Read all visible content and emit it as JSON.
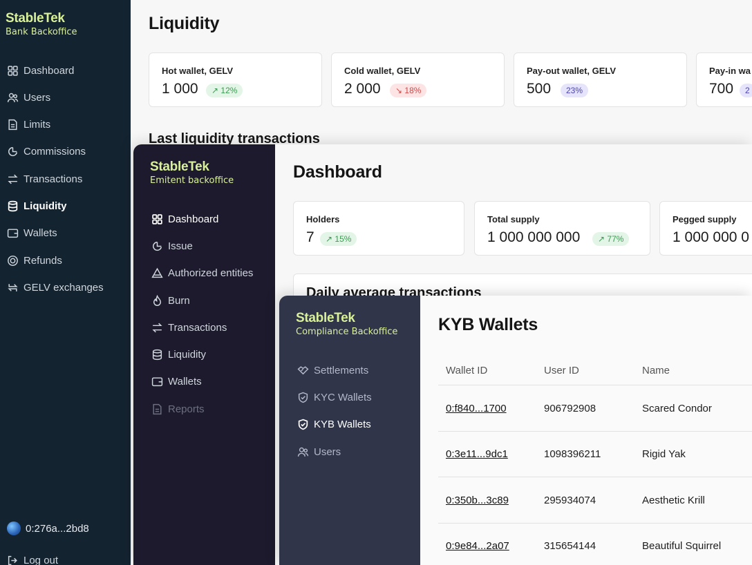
{
  "bank": {
    "brand": {
      "name": "StableTek",
      "subtitle": "Bank Backoffice"
    },
    "nav": [
      {
        "label": "Dashboard",
        "icon": "grid-icon"
      },
      {
        "label": "Users",
        "icon": "users-icon"
      },
      {
        "label": "Limits",
        "icon": "document-icon"
      },
      {
        "label": "Commissions",
        "icon": "commission-icon"
      },
      {
        "label": "Transactions",
        "icon": "arrows-icon"
      },
      {
        "label": "Liquidity",
        "icon": "database-icon",
        "active": true
      },
      {
        "label": "Wallets",
        "icon": "wallet-icon"
      },
      {
        "label": "Refunds",
        "icon": "refund-icon"
      },
      {
        "label": "GELV exchanges",
        "icon": "exchange-icon"
      }
    ],
    "account": "0:276a...2bd8",
    "logout": "Log out",
    "title": "Liquidity",
    "cards": [
      {
        "label": "Hot wallet, GELV",
        "value": "1 000",
        "badge": "↗ 12%",
        "trend": "up"
      },
      {
        "label": "Cold wallet, GELV",
        "value": "2 000",
        "badge": "↘ 18%",
        "trend": "down"
      },
      {
        "label": "Pay-out wallet, GELV",
        "value": "500",
        "badge": "23%",
        "trend": "neutral"
      },
      {
        "label": "Pay-in wa",
        "value": "700",
        "badge": "2",
        "trend": "neutral"
      }
    ],
    "section": "Last liquidity transactions"
  },
  "emitent": {
    "brand": {
      "name": "StableTek",
      "subtitle": "Emitent backoffice"
    },
    "nav": [
      {
        "label": "Dashboard",
        "icon": "grid-icon",
        "active": true
      },
      {
        "label": "Issue",
        "icon": "issue-icon"
      },
      {
        "label": "Authorized entities",
        "icon": "triangle-icon"
      },
      {
        "label": "Burn",
        "icon": "flame-icon"
      },
      {
        "label": "Transactions",
        "icon": "arrows-icon"
      },
      {
        "label": "Liquidity",
        "icon": "database-icon"
      },
      {
        "label": "Wallets",
        "icon": "wallet-icon"
      },
      {
        "label": "Reports",
        "icon": "document-icon",
        "disabled": true
      }
    ],
    "title": "Dashboard",
    "cards": [
      {
        "label": "Holders",
        "value": "7",
        "badge": "↗ 15%",
        "trend": "up"
      },
      {
        "label": "Total supply",
        "value": "1 000 000 000",
        "badge": "↗ 77%",
        "trend": "up"
      },
      {
        "label": "Pegged supply",
        "value": "1 000 000 0",
        "badge": "",
        "trend": "up"
      }
    ],
    "section": "Daily average transactions"
  },
  "compliance": {
    "brand": {
      "name": "StableTek",
      "subtitle": "Compliance Backoffice"
    },
    "nav": [
      {
        "label": "Settlements",
        "icon": "handshake-icon"
      },
      {
        "label": "KYC Wallets",
        "icon": "shield-check-icon"
      },
      {
        "label": "KYB Wallets",
        "icon": "shield-check-icon",
        "active": true
      },
      {
        "label": "Users",
        "icon": "users-icon"
      }
    ],
    "title": "KYB Wallets",
    "columns": [
      "Wallet ID",
      "User ID",
      "Name"
    ],
    "rows": [
      {
        "wallet": "0:f840...1700",
        "user": "906792908",
        "name": "Scared Condor"
      },
      {
        "wallet": "0:3e11...9dc1",
        "user": "1098396211",
        "name": "Rigid Yak"
      },
      {
        "wallet": "0:350b...3c89",
        "user": "295934074",
        "name": "Aesthetic Krill"
      },
      {
        "wallet": "0:9e84...2a07",
        "user": "315654144",
        "name": "Beautiful Squirrel"
      }
    ]
  }
}
